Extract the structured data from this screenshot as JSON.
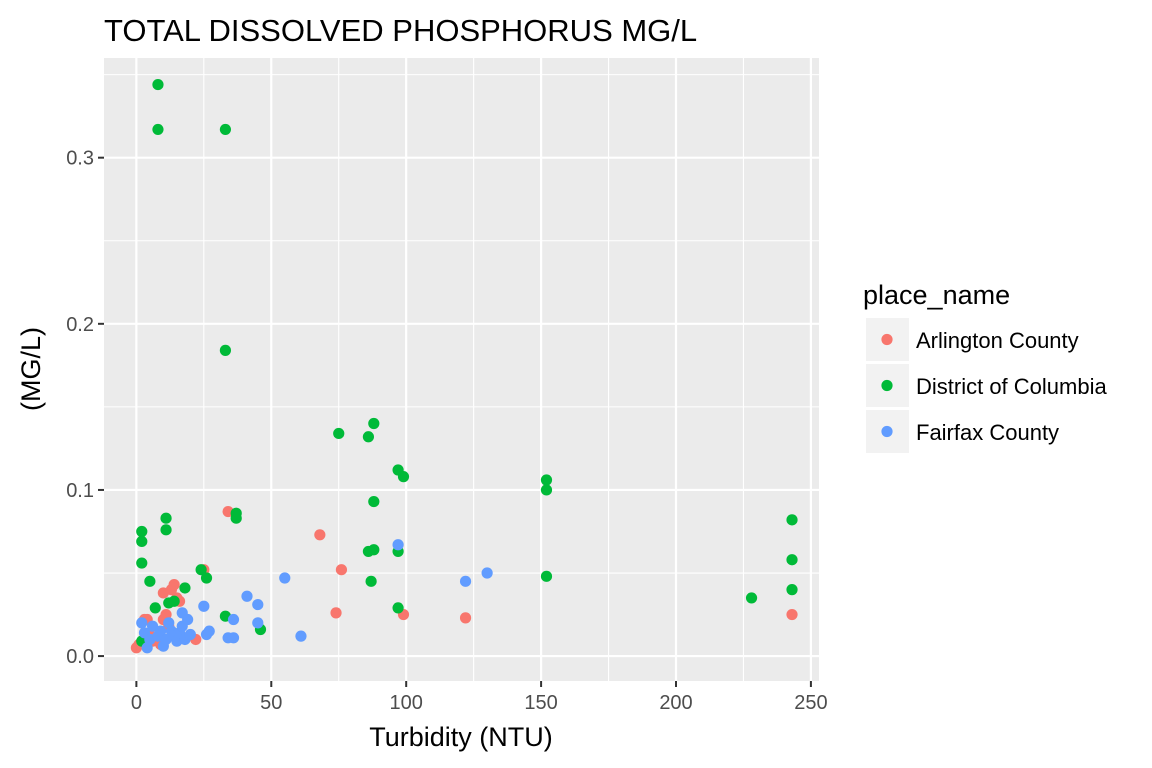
{
  "chart_data": {
    "type": "scatter",
    "title": "TOTAL DISSOLVED PHOSPHORUS MG/L",
    "xlabel": "Turbidity (NTU)",
    "ylabel": "(MG/L)",
    "xlim": [
      -12,
      253
    ],
    "ylim": [
      -0.015,
      0.36
    ],
    "x_ticks": [
      0,
      50,
      100,
      150,
      200,
      250
    ],
    "y_ticks": [
      0.0,
      0.1,
      0.2,
      0.3
    ],
    "x_tick_labels": [
      "0",
      "50",
      "100",
      "150",
      "200",
      "250"
    ],
    "y_tick_labels": [
      "0.0",
      "0.1",
      "0.2",
      "0.3"
    ],
    "grid": true,
    "legend_position": "right",
    "legend_title": "place_name",
    "series": [
      {
        "name": "Arlington County",
        "color": "#F8766D",
        "points": [
          [
            0,
            0.005
          ],
          [
            1,
            0.007
          ],
          [
            3,
            0.022
          ],
          [
            4,
            0.022
          ],
          [
            5,
            0.013
          ],
          [
            6,
            0.009
          ],
          [
            7,
            0.011
          ],
          [
            8,
            0.01
          ],
          [
            9,
            0.007
          ],
          [
            10,
            0.038
          ],
          [
            10,
            0.022
          ],
          [
            11,
            0.025
          ],
          [
            12,
            0.018
          ],
          [
            13,
            0.04
          ],
          [
            14,
            0.043
          ],
          [
            15,
            0.035
          ],
          [
            16,
            0.033
          ],
          [
            22,
            0.01
          ],
          [
            25,
            0.052
          ],
          [
            34,
            0.087
          ],
          [
            68,
            0.073
          ],
          [
            74,
            0.026
          ],
          [
            76,
            0.052
          ],
          [
            99,
            0.025
          ],
          [
            122,
            0.023
          ],
          [
            243,
            0.025
          ]
        ]
      },
      {
        "name": "District of Columbia",
        "color": "#00BA38",
        "points": [
          [
            2,
            0.075
          ],
          [
            2,
            0.069
          ],
          [
            2,
            0.056
          ],
          [
            2,
            0.009
          ],
          [
            5,
            0.045
          ],
          [
            7,
            0.029
          ],
          [
            8,
            0.344
          ],
          [
            8,
            0.317
          ],
          [
            11,
            0.083
          ],
          [
            11,
            0.076
          ],
          [
            12,
            0.032
          ],
          [
            14,
            0.033
          ],
          [
            18,
            0.041
          ],
          [
            24,
            0.052
          ],
          [
            26,
            0.047
          ],
          [
            33,
            0.317
          ],
          [
            33,
            0.184
          ],
          [
            33,
            0.024
          ],
          [
            37,
            0.086
          ],
          [
            37,
            0.083
          ],
          [
            46,
            0.016
          ],
          [
            75,
            0.134
          ],
          [
            86,
            0.132
          ],
          [
            86,
            0.063
          ],
          [
            87,
            0.045
          ],
          [
            88,
            0.14
          ],
          [
            88,
            0.093
          ],
          [
            88,
            0.064
          ],
          [
            97,
            0.112
          ],
          [
            97,
            0.063
          ],
          [
            97,
            0.029
          ],
          [
            99,
            0.108
          ],
          [
            152,
            0.106
          ],
          [
            152,
            0.1
          ],
          [
            152,
            0.048
          ],
          [
            228,
            0.035
          ],
          [
            243,
            0.082
          ],
          [
            243,
            0.058
          ],
          [
            243,
            0.04
          ]
        ]
      },
      {
        "name": "Fairfax County",
        "color": "#619CFF",
        "points": [
          [
            2,
            0.02
          ],
          [
            3,
            0.014
          ],
          [
            4,
            0.005
          ],
          [
            5,
            0.01
          ],
          [
            6,
            0.018
          ],
          [
            8,
            0.012
          ],
          [
            9,
            0.015
          ],
          [
            10,
            0.006
          ],
          [
            11,
            0.01
          ],
          [
            12,
            0.02
          ],
          [
            13,
            0.015
          ],
          [
            14,
            0.012
          ],
          [
            15,
            0.009
          ],
          [
            16,
            0.014
          ],
          [
            17,
            0.026
          ],
          [
            17,
            0.018
          ],
          [
            18,
            0.01
          ],
          [
            19,
            0.022
          ],
          [
            20,
            0.013
          ],
          [
            25,
            0.03
          ],
          [
            26,
            0.013
          ],
          [
            27,
            0.015
          ],
          [
            34,
            0.011
          ],
          [
            36,
            0.022
          ],
          [
            36,
            0.011
          ],
          [
            41,
            0.036
          ],
          [
            45,
            0.031
          ],
          [
            45,
            0.02
          ],
          [
            55,
            0.047
          ],
          [
            61,
            0.012
          ],
          [
            97,
            0.067
          ],
          [
            122,
            0.045
          ],
          [
            130,
            0.05
          ]
        ]
      }
    ]
  }
}
